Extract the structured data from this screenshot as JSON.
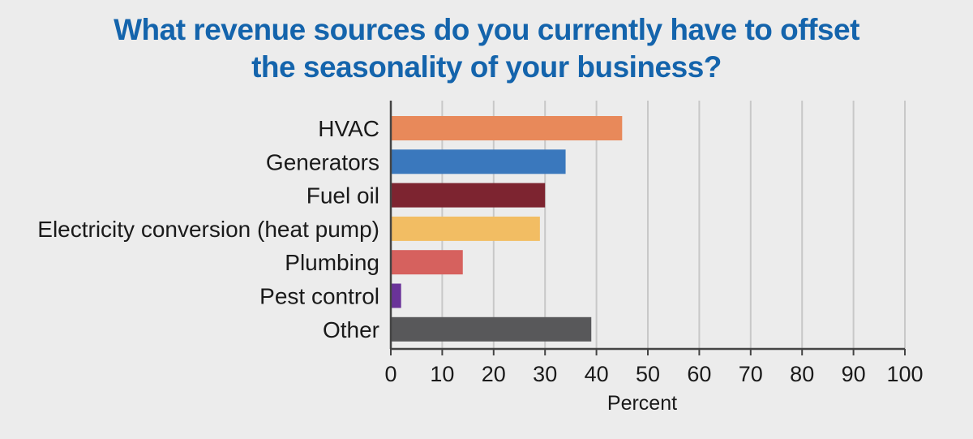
{
  "chart_data": {
    "type": "bar",
    "orientation": "horizontal",
    "title_lines": [
      "What revenue sources do you currently have to offset",
      "the seasonality of your business?"
    ],
    "xlabel": "Percent",
    "ylabel": "",
    "xlim": [
      0,
      100
    ],
    "xticks": [
      0,
      10,
      20,
      30,
      40,
      50,
      60,
      70,
      80,
      90,
      100
    ],
    "grid": true,
    "categories": [
      "HVAC",
      "Generators",
      "Fuel oil",
      "Electricity conversion (heat pump)",
      "Plumbing",
      "Pest control",
      "Other"
    ],
    "values": [
      45,
      34,
      30,
      29,
      14,
      2,
      39
    ],
    "colors": [
      "#e8895a",
      "#3a78bd",
      "#7d2430",
      "#f2bd63",
      "#d6615e",
      "#6a3399",
      "#58585a"
    ]
  },
  "colors": {
    "title": "#1464ac",
    "background": "#ececec",
    "grid": "#c8c8c8",
    "axis": "#444444"
  }
}
